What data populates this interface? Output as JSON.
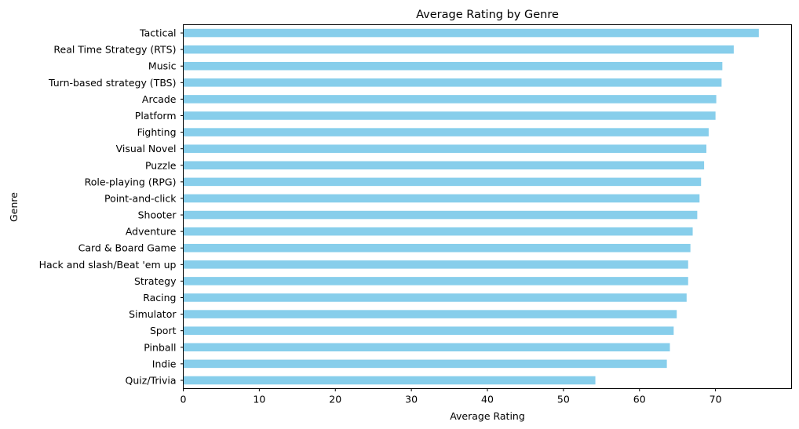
{
  "chart_data": {
    "type": "bar",
    "orientation": "horizontal",
    "title": "Average Rating by Genre",
    "xlabel": "Average Rating",
    "ylabel": "Genre",
    "xlim": [
      0,
      80
    ],
    "x_ticks": [
      0,
      10,
      20,
      30,
      40,
      50,
      60,
      70
    ],
    "grid": false,
    "bar_color": "#87CEEB",
    "categories": [
      "Tactical",
      "Real Time Strategy (RTS)",
      "Music",
      "Turn-based strategy (TBS)",
      "Arcade",
      "Platform",
      "Fighting",
      "Visual Novel",
      "Puzzle",
      "Role-playing (RPG)",
      "Point-and-click",
      "Shooter",
      "Adventure",
      "Card & Board Game",
      "Hack and slash/Beat 'em up",
      "Strategy",
      "Racing",
      "Simulator",
      "Sport",
      "Pinball",
      "Indie",
      "Quiz/Trivia"
    ],
    "values": [
      75.7,
      72.4,
      70.9,
      70.8,
      70.1,
      70.0,
      69.1,
      68.8,
      68.5,
      68.1,
      67.9,
      67.6,
      67.0,
      66.7,
      66.4,
      66.4,
      66.2,
      64.9,
      64.5,
      64.0,
      63.6,
      54.2
    ]
  }
}
